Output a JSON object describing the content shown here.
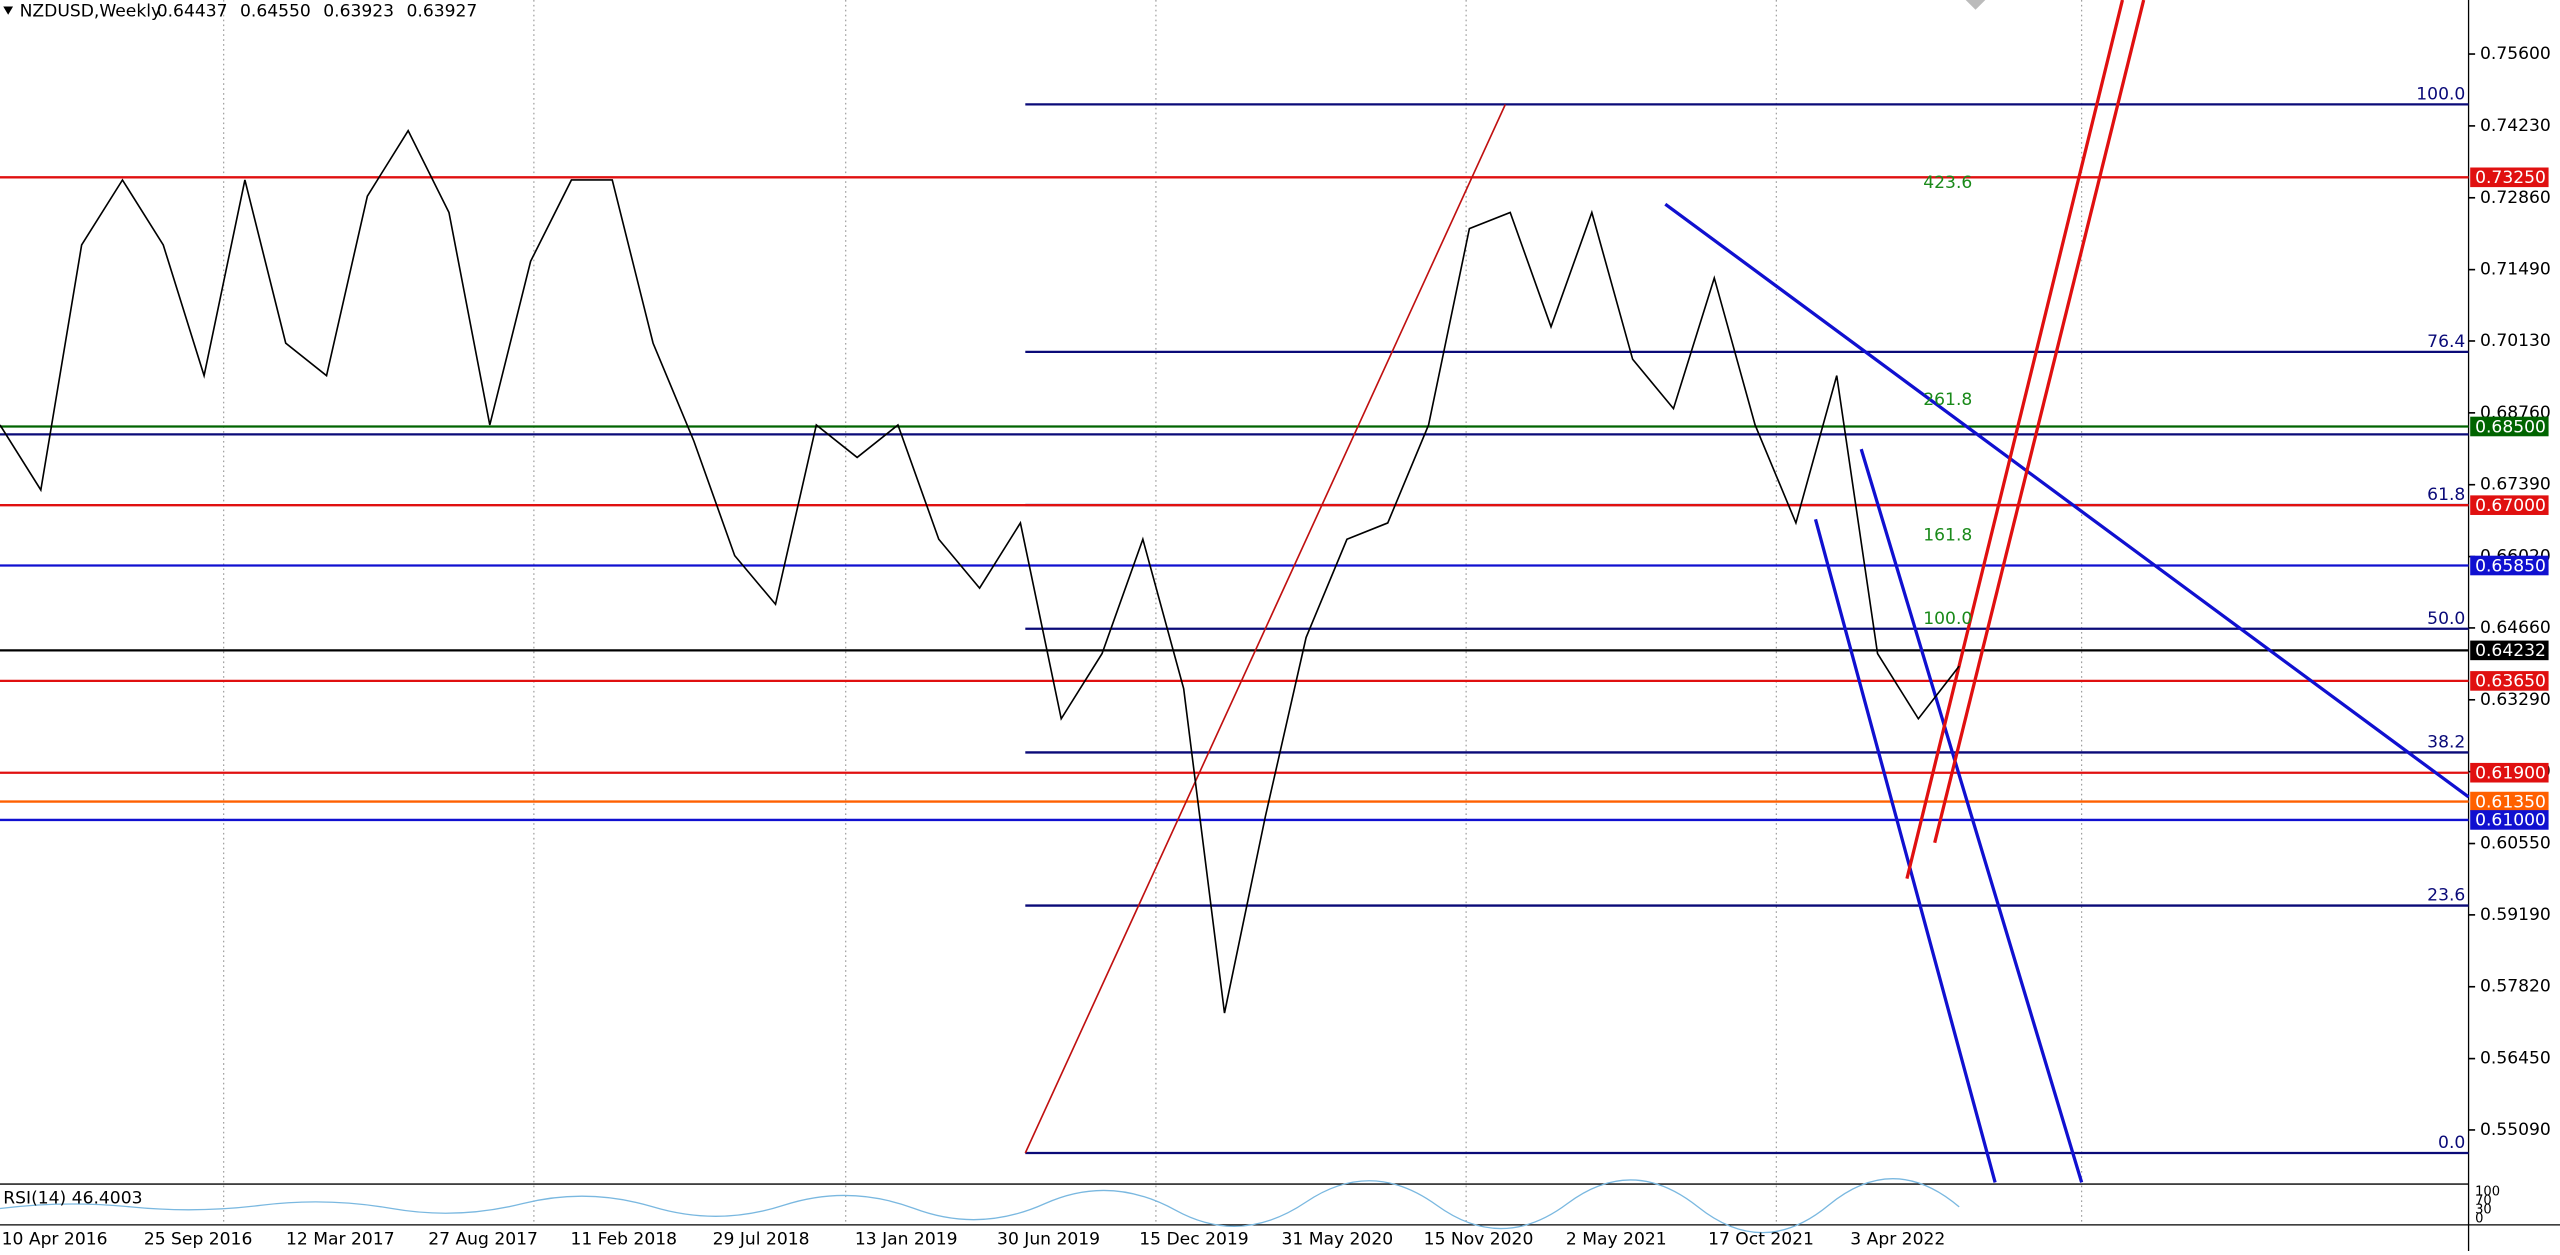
{
  "header": {
    "symbol": "NZDUSD,Weekly",
    "open": "0.64437",
    "high": "0.64550",
    "low": "0.63923",
    "close": "0.63927"
  },
  "chart": {
    "price_axis": {
      "ylim": [
        0.5409,
        0.7663
      ],
      "ticks": [
        {
          "value": 0.756,
          "label": "0.75600"
        },
        {
          "value": 0.7423,
          "label": "0.74230"
        },
        {
          "value": 0.7286,
          "label": "0.72860"
        },
        {
          "value": 0.7149,
          "label": "0.71490"
        },
        {
          "value": 0.7013,
          "label": "0.70130"
        },
        {
          "value": 0.6876,
          "label": "0.68760"
        },
        {
          "value": 0.6739,
          "label": "0.67390"
        },
        {
          "value": 0.6602,
          "label": "0.66020"
        },
        {
          "value": 0.6466,
          "label": "0.64660"
        },
        {
          "value": 0.6329,
          "label": "0.63290"
        },
        {
          "value": 0.6192,
          "label": "0.61920"
        },
        {
          "value": 0.6055,
          "label": "0.60550"
        },
        {
          "value": 0.5919,
          "label": "0.59190"
        },
        {
          "value": 0.5782,
          "label": "0.57820"
        },
        {
          "value": 0.5645,
          "label": "0.56450"
        },
        {
          "value": 0.5509,
          "label": "0.55090"
        }
      ]
    },
    "dates": [
      "10 Apr 2016",
      "25 Sep 2016",
      "12 Mar 2017",
      "27 Aug 2017",
      "11 Feb 2018",
      "29 Jul 2018",
      "13 Jan 2019",
      "30 Jun 2019",
      "15 Dec 2019",
      "31 May 2020",
      "15 Nov 2020",
      "2 May 2021",
      "17 Oct 2021",
      "3 Apr 2022"
    ],
    "price_line": [
      0.6853,
      0.6729,
      0.7196,
      0.732,
      0.7196,
      0.6947,
      0.732,
      0.7009,
      0.6947,
      0.7289,
      0.7414,
      0.7258,
      0.6853,
      0.7165,
      0.732,
      0.732,
      0.7009,
      0.6822,
      0.6604,
      0.6511,
      0.6853,
      0.6791,
      0.6853,
      0.6635,
      0.6542,
      0.6666,
      0.6293,
      0.6417,
      0.6635,
      0.635,
      0.5732,
      0.6106,
      0.6448,
      0.6635,
      0.6666,
      0.6853,
      0.7227,
      0.7258,
      0.704,
      0.7258,
      0.6978,
      0.6884,
      0.7133,
      0.6853,
      0.6666,
      0.6947,
      0.6417,
      0.6293,
      0.6393
    ],
    "levels": [
      {
        "value": 0.7325,
        "label": "0.73250",
        "color": "#e01010"
      },
      {
        "value": 0.685,
        "label": "0.68500",
        "color": "#006400"
      },
      {
        "value": 0.6835,
        "color": "#0a0a78"
      },
      {
        "value": 0.67,
        "label": "0.67000",
        "color": "#e01010"
      },
      {
        "value": 0.6585,
        "label": "0.65850",
        "color": "#1010d0"
      },
      {
        "value": 0.64232,
        "label": "0.64232",
        "color": "#000000"
      },
      {
        "value": 0.6365,
        "label": "0.63650",
        "color": "#e01010"
      },
      {
        "value": 0.619,
        "label": "0.61900",
        "color": "#e01010"
      },
      {
        "value": 0.6135,
        "label": "0.61350",
        "color": "#ff6000"
      },
      {
        "value": 0.61,
        "label": "0.61000",
        "color": "#1010d0"
      }
    ],
    "fib": {
      "from": 0.5465,
      "to": 0.7464,
      "color": "#0a0a78",
      "levels": [
        {
          "value": 100,
          "label": "100.0"
        },
        {
          "value": 76.4,
          "label": "76.4"
        },
        {
          "value": 61.8,
          "label": "61.8"
        },
        {
          "value": 50,
          "label": "50.0"
        },
        {
          "value": 38.2,
          "label": "38.2"
        },
        {
          "value": 23.6,
          "label": "23.6"
        },
        {
          "value": 0,
          "label": "0.0"
        }
      ]
    },
    "extension_labels": [
      "423.6",
      "261.8",
      "161.8",
      "100.0"
    ],
    "rsi": {
      "label": "RSI(14) 46.4003",
      "ticks": [
        "100",
        "70",
        "30",
        "0"
      ]
    }
  }
}
